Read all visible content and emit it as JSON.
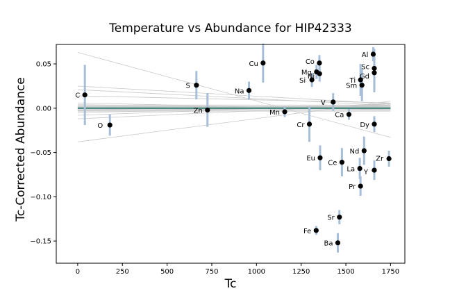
{
  "chart_data": {
    "type": "scatter",
    "title": "Temperature vs Abundance for HIP42333",
    "xlabel": "Tc",
    "ylabel": "Tc-Corrected Abundance",
    "xlim": [
      -120,
      1830
    ],
    "ylim": [
      -0.175,
      0.072
    ],
    "xticks": [
      0,
      250,
      500,
      750,
      1000,
      1250,
      1500,
      1750
    ],
    "yticks": [
      -0.15,
      -0.1,
      -0.05,
      0.0,
      0.05
    ],
    "ytick_labels": [
      "−0.15",
      "−0.10",
      "−0.05",
      "0.00",
      "0.05"
    ],
    "grid": false,
    "points": [
      {
        "element": "C",
        "tc": 40,
        "abundance": 0.015,
        "err": 0.034
      },
      {
        "element": "O",
        "tc": 180,
        "abundance": -0.019,
        "err": 0.012
      },
      {
        "element": "S",
        "tc": 664,
        "abundance": 0.026,
        "err": 0.016
      },
      {
        "element": "Zn",
        "tc": 726,
        "abundance": -0.002,
        "err": 0.019
      },
      {
        "element": "Na",
        "tc": 958,
        "abundance": 0.02,
        "err": 0.01
      },
      {
        "element": "Cu",
        "tc": 1037,
        "abundance": 0.051,
        "err": 0.022
      },
      {
        "element": "Mn",
        "tc": 1158,
        "abundance": -0.004,
        "err": 0.006
      },
      {
        "element": "Cr",
        "tc": 1296,
        "abundance": -0.018,
        "err": 0.02
      },
      {
        "element": "Si",
        "tc": 1310,
        "abundance": 0.032,
        "err": 0.008
      },
      {
        "element": "Fe",
        "tc": 1334,
        "abundance": -0.138,
        "err": 0.005
      },
      {
        "element": "Mg",
        "tc": 1336,
        "abundance": 0.041,
        "err": 0.008
      },
      {
        "element": "Co",
        "tc": 1352,
        "abundance": 0.051,
        "err": 0.009
      },
      {
        "element": "Ni",
        "tc": 1353,
        "abundance": 0.039,
        "err": 0.009
      },
      {
        "element": "Eu",
        "tc": 1356,
        "abundance": -0.056,
        "err": 0.014
      },
      {
        "element": "V",
        "tc": 1429,
        "abundance": 0.007,
        "err": 0.01
      },
      {
        "element": "Ba",
        "tc": 1455,
        "abundance": -0.152,
        "err": 0.011
      },
      {
        "element": "Sr",
        "tc": 1464,
        "abundance": -0.123,
        "err": 0.008
      },
      {
        "element": "Ce",
        "tc": 1478,
        "abundance": -0.061,
        "err": 0.016
      },
      {
        "element": "Ca",
        "tc": 1517,
        "abundance": -0.007,
        "err": 0.006
      },
      {
        "element": "La",
        "tc": 1578,
        "abundance": -0.068,
        "err": 0.012
      },
      {
        "element": "Ti",
        "tc": 1582,
        "abundance": 0.032,
        "err": 0.018
      },
      {
        "element": "Pr",
        "tc": 1582,
        "abundance": -0.088,
        "err": 0.011
      },
      {
        "element": "Sm",
        "tc": 1590,
        "abundance": 0.026,
        "err": 0.018
      },
      {
        "element": "Nd",
        "tc": 1602,
        "abundance": -0.048,
        "err": 0.016
      },
      {
        "element": "Al",
        "tc": 1653,
        "abundance": 0.061,
        "err": 0.008
      },
      {
        "element": "Sc",
        "tc": 1659,
        "abundance": 0.045,
        "err": 0.022
      },
      {
        "element": "Gd",
        "tc": 1659,
        "abundance": 0.04,
        "err": 0.022
      },
      {
        "element": "Dy",
        "tc": 1659,
        "abundance": -0.018,
        "err": 0.009
      },
      {
        "element": "Y",
        "tc": 1659,
        "abundance": -0.07,
        "err": 0.011
      },
      {
        "element": "Zr",
        "tc": 1741,
        "abundance": -0.057,
        "err": 0.009
      }
    ],
    "fit_line": {
      "x": [
        0,
        1750
      ],
      "y": [
        0.0,
        0.0
      ]
    },
    "bootstrap_lines": [
      {
        "x": [
          0,
          1750
        ],
        "y": [
          0.063,
          -0.033
        ]
      },
      {
        "x": [
          0,
          1750
        ],
        "y": [
          -0.038,
          0.008
        ]
      },
      {
        "x": [
          0,
          1750
        ],
        "y": [
          0.025,
          0.005
        ]
      },
      {
        "x": [
          0,
          1750
        ],
        "y": [
          0.021,
          0.003
        ]
      },
      {
        "x": [
          0,
          1750
        ],
        "y": [
          0.014,
          0.006
        ]
      },
      {
        "x": [
          0,
          1750
        ],
        "y": [
          -0.012,
          0.004
        ]
      },
      {
        "x": [
          0,
          1750
        ],
        "y": [
          -0.008,
          0.005
        ]
      },
      {
        "x": [
          0,
          1750
        ],
        "y": [
          -0.005,
          0.003
        ]
      },
      {
        "x": [
          0,
          1750
        ],
        "y": [
          -0.003,
          0.002
        ]
      },
      {
        "x": [
          0,
          1750
        ],
        "y": [
          0.004,
          -0.001
        ]
      },
      {
        "x": [
          0,
          1750
        ],
        "y": [
          0.002,
          0.001
        ]
      },
      {
        "x": [
          0,
          1750
        ],
        "y": [
          -0.002,
          0.004
        ]
      },
      {
        "x": [
          0,
          1750
        ],
        "y": [
          0.006,
          -0.002
        ]
      },
      {
        "x": [
          0,
          1750
        ],
        "y": [
          0.001,
          0.002
        ]
      }
    ],
    "colors": {
      "marker": "#000000",
      "errorbar": "#a6bed8",
      "fit": "#3c8478",
      "bootstrap": "#c8c8c8"
    }
  }
}
